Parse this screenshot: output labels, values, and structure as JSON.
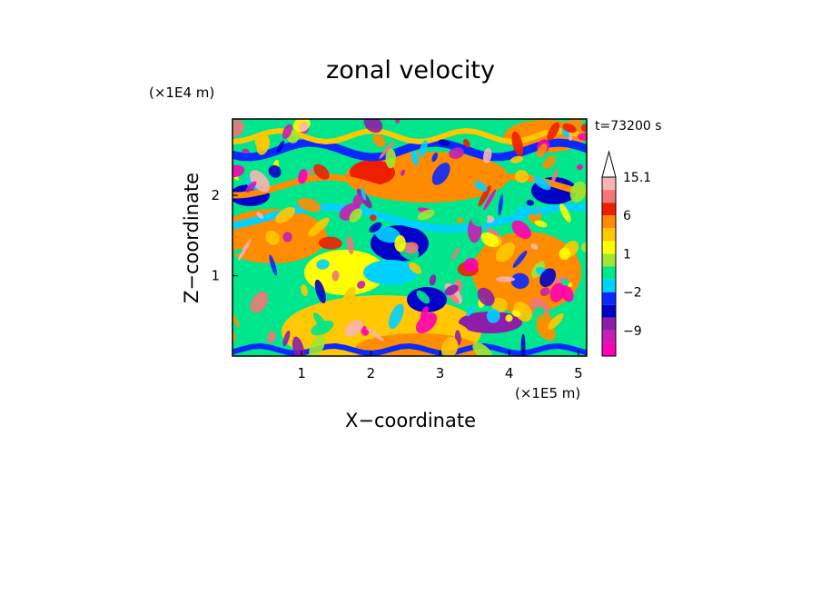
{
  "chart_data": {
    "type": "heatmap",
    "title": "zonal velocity",
    "xlabel": "X−coordinate",
    "ylabel": "Z−coordinate",
    "x_unit": "(×1E5 m)",
    "y_unit": "(×1E4 m)",
    "time_label": "t=73200 s",
    "xlim": [
      0,
      5.12
    ],
    "ylim": [
      0,
      2.95
    ],
    "x_ticks": [
      {
        "value": 1,
        "label": "1"
      },
      {
        "value": 2,
        "label": "2"
      },
      {
        "value": 3,
        "label": "3"
      },
      {
        "value": 4,
        "label": "4"
      },
      {
        "value": 5,
        "label": "5"
      }
    ],
    "y_ticks": [
      {
        "value": 1,
        "label": "1"
      },
      {
        "value": 2,
        "label": "2"
      }
    ],
    "colorbar": {
      "levels": [
        {
          "color": "#ff00b4",
          "tick": ""
        },
        {
          "color": "#c81eb4",
          "tick": "−9"
        },
        {
          "color": "#8c1eaa",
          "tick": ""
        },
        {
          "color": "#0000c8",
          "tick": ""
        },
        {
          "color": "#0a28ff",
          "tick": "−2"
        },
        {
          "color": "#00d2ff",
          "tick": ""
        },
        {
          "color": "#00e68c",
          "tick": ""
        },
        {
          "color": "#a0e632",
          "tick": "1"
        },
        {
          "color": "#ffff00",
          "tick": ""
        },
        {
          "color": "#ffc800",
          "tick": ""
        },
        {
          "color": "#ff8c00",
          "tick": "6"
        },
        {
          "color": "#f01e00",
          "tick": ""
        },
        {
          "color": "#f07878",
          "tick": ""
        },
        {
          "color": "#f8b4b4",
          "tick": "15.1"
        }
      ]
    }
  }
}
